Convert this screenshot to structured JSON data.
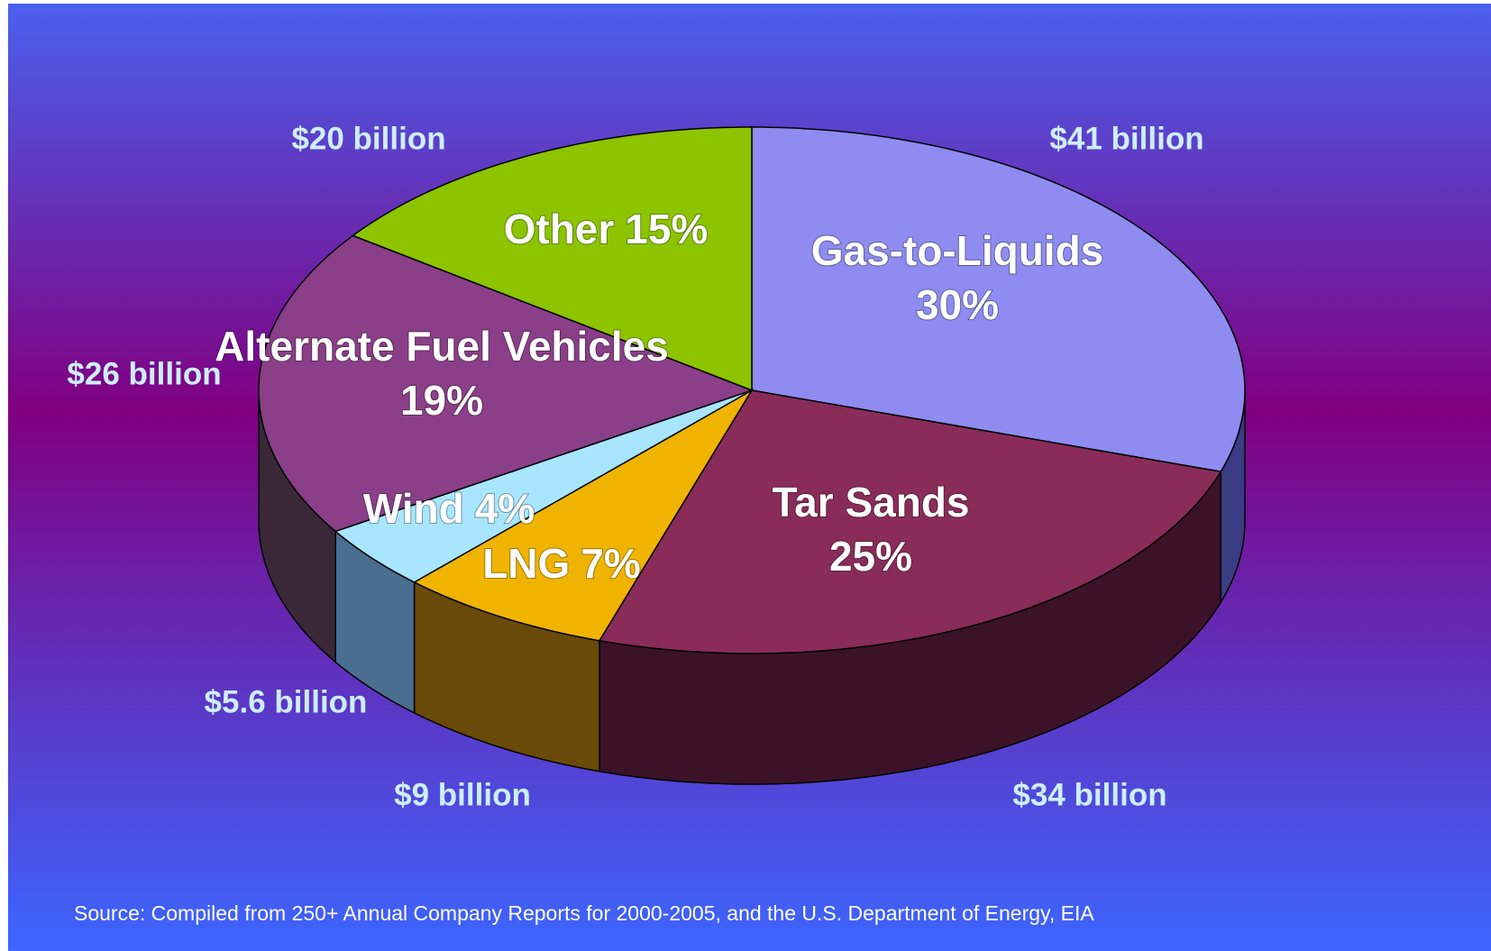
{
  "chart_data": {
    "type": "pie3d",
    "categories": [
      "Gas-to-Liquids",
      "Tar Sands",
      "LNG",
      "Wind",
      "Alternate Fuel Vehicles",
      "Other"
    ],
    "values": [
      30,
      25,
      7,
      4,
      19,
      15
    ],
    "value_labels": [
      "30%",
      "25%",
      "7%",
      "4%",
      "19%",
      "15%"
    ],
    "amount_labels": [
      "$41 billion",
      "$34 billion",
      "$9 billion",
      "$5.6 billion",
      "$26 billion",
      "$20 billion"
    ],
    "colors": [
      "#8e8cf0",
      "#8a2c5a",
      "#f0b400",
      "#a8e6ff",
      "#8a3f88",
      "#8cc400"
    ],
    "side_colors": [
      "#3a3c84",
      "#3c1228",
      "#6a4a08",
      "#4a6e90",
      "#3a2838",
      "#4a6a00"
    ],
    "source": "Source: Compiled from 250+ Annual Company Reports for 2000-2005, and the U.S. Department of Energy, EIA"
  }
}
